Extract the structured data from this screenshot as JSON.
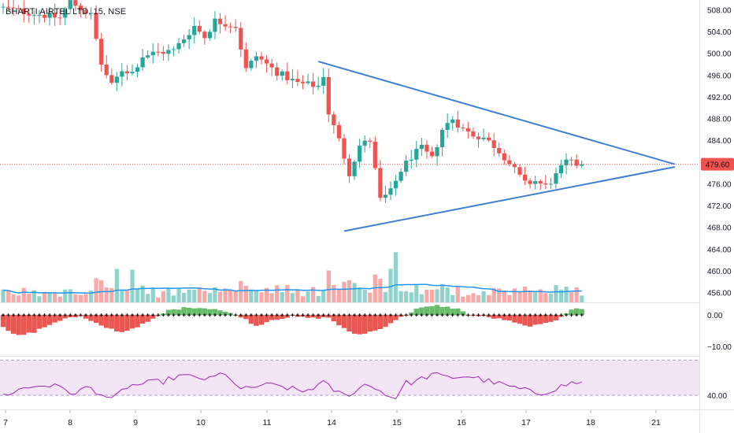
{
  "symbol": "BHARTI AIRTEL LTD, 15, NSE",
  "colors": {
    "up": "#26a69a",
    "down": "#ef5350",
    "trendline": "#3f7fd1",
    "volume_ma": "#2196f3",
    "rsi": "#9c27b0",
    "rsi_band": "#f3e5f5",
    "osc_pos": "#4caf50",
    "osc_neg": "#e53935",
    "price_label": "#ef5350"
  },
  "chart_data": [
    {
      "type": "candlestick",
      "title": "BHARTI AIRTEL LTD, 15, NSE",
      "price_axis_ticks": [
        "508.00",
        "504.00",
        "500.00",
        "496.00",
        "492.00",
        "488.00",
        "484.00",
        "480.00",
        "476.00",
        "472.00",
        "468.00",
        "464.00",
        "460.00",
        "456.00"
      ],
      "ylim": [
        454.2,
        509.8
      ],
      "last_price": "479.60",
      "x_tick_labels": [
        "7",
        "8",
        "9",
        "10",
        "11",
        "14",
        "15",
        "16",
        "17",
        "18",
        "21"
      ],
      "anchors": [
        {
          "x": 0,
          "y": 508.5
        },
        {
          "x": 6,
          "y": 507.5
        },
        {
          "x": 12,
          "y": 506.5
        },
        {
          "x": 14,
          "y": 509.5
        },
        {
          "x": 18,
          "y": 507.0
        },
        {
          "x": 20,
          "y": 498.0
        },
        {
          "x": 22,
          "y": 494.0
        },
        {
          "x": 24,
          "y": 497.0
        },
        {
          "x": 26,
          "y": 496.5
        },
        {
          "x": 28,
          "y": 499.5
        },
        {
          "x": 30,
          "y": 500.0
        },
        {
          "x": 34,
          "y": 500.5
        },
        {
          "x": 38,
          "y": 505.0
        },
        {
          "x": 40,
          "y": 503.0
        },
        {
          "x": 42,
          "y": 506.0
        },
        {
          "x": 46,
          "y": 505.0
        },
        {
          "x": 48,
          "y": 497.0
        },
        {
          "x": 50,
          "y": 499.5
        },
        {
          "x": 54,
          "y": 496.5
        },
        {
          "x": 58,
          "y": 494.5
        },
        {
          "x": 62,
          "y": 494.0
        },
        {
          "x": 63,
          "y": 496.0
        },
        {
          "x": 64,
          "y": 489.0
        },
        {
          "x": 66,
          "y": 484.0
        },
        {
          "x": 68,
          "y": 478.0
        },
        {
          "x": 70,
          "y": 483.0
        },
        {
          "x": 72,
          "y": 484.0
        },
        {
          "x": 74,
          "y": 473.0
        },
        {
          "x": 76,
          "y": 474.5
        },
        {
          "x": 78,
          "y": 478.5
        },
        {
          "x": 80,
          "y": 481.0
        },
        {
          "x": 82,
          "y": 482.5
        },
        {
          "x": 84,
          "y": 480.5
        },
        {
          "x": 86,
          "y": 486.0
        },
        {
          "x": 88,
          "y": 488.0
        },
        {
          "x": 90,
          "y": 486.0
        },
        {
          "x": 92,
          "y": 485.0
        },
        {
          "x": 94,
          "y": 484.5
        },
        {
          "x": 96,
          "y": 483.0
        },
        {
          "x": 98,
          "y": 481.0
        },
        {
          "x": 100,
          "y": 478.5
        },
        {
          "x": 102,
          "y": 476.0
        },
        {
          "x": 104,
          "y": 476.5
        },
        {
          "x": 106,
          "y": 475.5
        },
        {
          "x": 108,
          "y": 477.5
        },
        {
          "x": 110,
          "y": 480.0
        },
        {
          "x": 112,
          "y": 479.6
        }
      ],
      "trendlines": [
        {
          "from": {
            "x": 61,
            "y": 498.5
          },
          "to": {
            "x": 130,
            "y": 479.6
          }
        },
        {
          "from": {
            "x": 66,
            "y": 467.3
          },
          "to": {
            "x": 130,
            "y": 479.1
          }
        }
      ]
    },
    {
      "type": "histogram",
      "title": "",
      "axis_ticks": [
        "0.00",
        "−10.00"
      ],
      "ylim": [
        -13.0,
        3.8
      ],
      "anchors": [
        {
          "x": 0,
          "y": -4.0
        },
        {
          "x": 3,
          "y": -6.5
        },
        {
          "x": 6,
          "y": -5.5
        },
        {
          "x": 9,
          "y": -3.0
        },
        {
          "x": 12,
          "y": -1.0
        },
        {
          "x": 15,
          "y": -0.5
        },
        {
          "x": 19,
          "y": -3.5
        },
        {
          "x": 23,
          "y": -5.5
        },
        {
          "x": 27,
          "y": -3.0
        },
        {
          "x": 30,
          "y": -0.5
        },
        {
          "x": 32,
          "y": 1.5
        },
        {
          "x": 36,
          "y": 2.5
        },
        {
          "x": 41,
          "y": 2.0
        },
        {
          "x": 44,
          "y": 0.5
        },
        {
          "x": 46,
          "y": -0.5
        },
        {
          "x": 49,
          "y": -3.5
        },
        {
          "x": 52,
          "y": -1.5
        },
        {
          "x": 56,
          "y": -0.5
        },
        {
          "x": 60,
          "y": -1.0
        },
        {
          "x": 63,
          "y": -0.8
        },
        {
          "x": 67,
          "y": -5.5
        },
        {
          "x": 69,
          "y": -6.2
        },
        {
          "x": 73,
          "y": -4.5
        },
        {
          "x": 76,
          "y": -1.5
        },
        {
          "x": 78,
          "y": 0.0
        },
        {
          "x": 80,
          "y": 2.0
        },
        {
          "x": 84,
          "y": 3.0
        },
        {
          "x": 88,
          "y": 2.0
        },
        {
          "x": 90,
          "y": 0.0
        },
        {
          "x": 93,
          "y": -0.5
        },
        {
          "x": 97,
          "y": -1.5
        },
        {
          "x": 101,
          "y": -3.5
        },
        {
          "x": 104,
          "y": -3.2
        },
        {
          "x": 107,
          "y": -1.5
        },
        {
          "x": 110,
          "y": 1.8
        },
        {
          "x": 112,
          "y": 2.0
        }
      ]
    },
    {
      "type": "line",
      "title": "",
      "axis_ticks": [
        "40.00"
      ],
      "ylim": [
        32,
        62
      ],
      "band": [
        40,
        60
      ],
      "anchors": [
        {
          "x": 0,
          "y": 40
        },
        {
          "x": 4,
          "y": 44
        },
        {
          "x": 8,
          "y": 46
        },
        {
          "x": 12,
          "y": 44
        },
        {
          "x": 14,
          "y": 40
        },
        {
          "x": 16,
          "y": 45
        },
        {
          "x": 19,
          "y": 41
        },
        {
          "x": 21,
          "y": 37
        },
        {
          "x": 24,
          "y": 45
        },
        {
          "x": 28,
          "y": 47
        },
        {
          "x": 31,
          "y": 48
        },
        {
          "x": 34,
          "y": 51
        },
        {
          "x": 38,
          "y": 50
        },
        {
          "x": 40,
          "y": 49
        },
        {
          "x": 42,
          "y": 52
        },
        {
          "x": 44,
          "y": 50
        },
        {
          "x": 46,
          "y": 43
        },
        {
          "x": 48,
          "y": 44
        },
        {
          "x": 50,
          "y": 46
        },
        {
          "x": 54,
          "y": 45
        },
        {
          "x": 58,
          "y": 42
        },
        {
          "x": 62,
          "y": 47
        },
        {
          "x": 64,
          "y": 43
        },
        {
          "x": 66,
          "y": 40
        },
        {
          "x": 68,
          "y": 42
        },
        {
          "x": 70,
          "y": 46
        },
        {
          "x": 72,
          "y": 45
        },
        {
          "x": 74,
          "y": 40
        },
        {
          "x": 76,
          "y": 39
        },
        {
          "x": 78,
          "y": 47
        },
        {
          "x": 80,
          "y": 48
        },
        {
          "x": 83,
          "y": 52
        },
        {
          "x": 86,
          "y": 50
        },
        {
          "x": 90,
          "y": 51
        },
        {
          "x": 94,
          "y": 48
        },
        {
          "x": 98,
          "y": 45
        },
        {
          "x": 102,
          "y": 42
        },
        {
          "x": 104,
          "y": 41
        },
        {
          "x": 107,
          "y": 44
        },
        {
          "x": 110,
          "y": 47
        },
        {
          "x": 112,
          "y": 47
        }
      ]
    }
  ]
}
